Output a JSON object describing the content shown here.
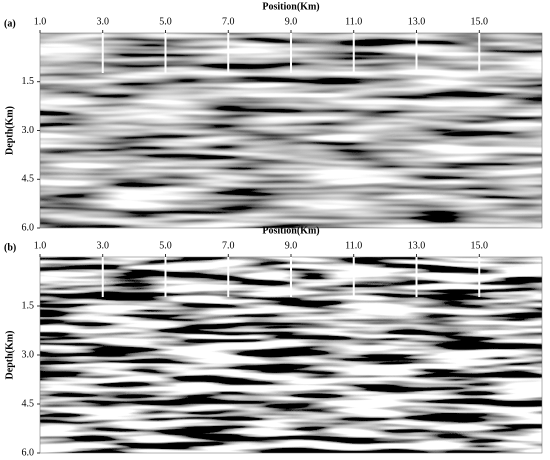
{
  "chart_data": [
    {
      "type": "seismic",
      "panel_label": "(a)",
      "xlabel": "Position(Km)",
      "ylabel": "Depth(Km)",
      "xlim": [
        1,
        17
      ],
      "xticks": [
        {
          "value": 1,
          "label": "1.0"
        },
        {
          "value": 3,
          "label": "3.0"
        },
        {
          "value": 5,
          "label": "5.0"
        },
        {
          "value": 7,
          "label": "7.0"
        },
        {
          "value": 9,
          "label": "9.0"
        },
        {
          "value": 11,
          "label": "11.0"
        },
        {
          "value": 13,
          "label": "13.0"
        },
        {
          "value": 15,
          "label": "15.0"
        }
      ],
      "ylim": [
        0,
        6
      ],
      "yticks": [
        {
          "value": 1.5,
          "label": "1.5"
        },
        {
          "value": 3,
          "label": "3.0"
        },
        {
          "value": 4.5,
          "label": "4.5"
        },
        {
          "value": 6,
          "label": "6.0"
        }
      ]
    },
    {
      "type": "seismic",
      "panel_label": "(b)",
      "xlabel": "Position(Km)",
      "ylabel": "Depth(Km)",
      "xlim": [
        1,
        17
      ],
      "xticks": [
        {
          "value": 1,
          "label": "1.0"
        },
        {
          "value": 3,
          "label": "3.0"
        },
        {
          "value": 5,
          "label": "5.0"
        },
        {
          "value": 7,
          "label": "7.0"
        },
        {
          "value": 9,
          "label": "9.0"
        },
        {
          "value": 11,
          "label": "11.0"
        },
        {
          "value": 13,
          "label": "13.0"
        },
        {
          "value": 15,
          "label": "15.0"
        }
      ],
      "ylim": [
        0,
        6
      ],
      "yticks": [
        {
          "value": 1.5,
          "label": "1.5"
        },
        {
          "value": 3,
          "label": "3.0"
        },
        {
          "value": 4.5,
          "label": "4.5"
        },
        {
          "value": 6,
          "label": "6.0"
        }
      ]
    }
  ]
}
